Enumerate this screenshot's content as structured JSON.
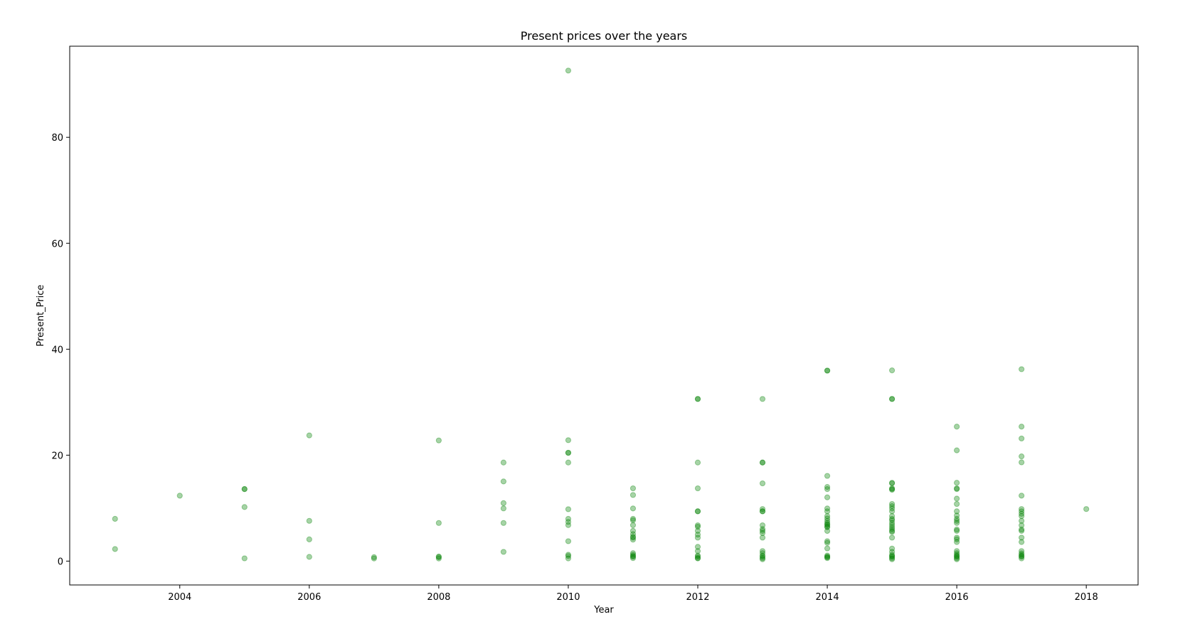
{
  "chart_data": {
    "type": "scatter",
    "title": "Present prices over the years",
    "xlabel": "Year",
    "ylabel": "Present_Price",
    "xlim": [
      2002.3,
      2018.8
    ],
    "ylim": [
      -4.5,
      97.2
    ],
    "x_ticks": [
      2004,
      2006,
      2008,
      2010,
      2012,
      2014,
      2016,
      2018
    ],
    "y_ticks": [
      0,
      20,
      40,
      60,
      80
    ],
    "grid": false,
    "legend": "none",
    "marker_color": "#008000",
    "marker_opacity": 0.35,
    "points": [
      [
        2003,
        7.98
      ],
      [
        2003,
        2.28
      ],
      [
        2004,
        12.35
      ],
      [
        2005,
        13.6
      ],
      [
        2005,
        13.6
      ],
      [
        2005,
        10.21
      ],
      [
        2005,
        0.52
      ],
      [
        2006,
        23.73
      ],
      [
        2006,
        7.6
      ],
      [
        2006,
        4.1
      ],
      [
        2006,
        0.8
      ],
      [
        2007,
        0.75
      ],
      [
        2007,
        0.5
      ],
      [
        2008,
        22.78
      ],
      [
        2008,
        7.2
      ],
      [
        2008,
        0.87
      ],
      [
        2008,
        0.75
      ],
      [
        2008,
        0.5
      ],
      [
        2009,
        18.61
      ],
      [
        2009,
        15.04
      ],
      [
        2009,
        10.95
      ],
      [
        2009,
        9.95
      ],
      [
        2009,
        7.2
      ],
      [
        2009,
        1.75
      ],
      [
        2010,
        92.6
      ],
      [
        2010,
        22.83
      ],
      [
        2010,
        20.45
      ],
      [
        2010,
        20.45
      ],
      [
        2010,
        18.61
      ],
      [
        2010,
        9.8
      ],
      [
        2010,
        7.98
      ],
      [
        2010,
        7.4
      ],
      [
        2010,
        6.8
      ],
      [
        2010,
        3.76
      ],
      [
        2010,
        1.2
      ],
      [
        2010,
        0.95
      ],
      [
        2010,
        0.51
      ],
      [
        2011,
        13.74
      ],
      [
        2011,
        12.48
      ],
      [
        2011,
        9.94
      ],
      [
        2011,
        7.98
      ],
      [
        2011,
        7.7
      ],
      [
        2011,
        6.79
      ],
      [
        2011,
        5.71
      ],
      [
        2011,
        5.09
      ],
      [
        2011,
        4.6
      ],
      [
        2011,
        4.43
      ],
      [
        2011,
        4.06
      ],
      [
        2011,
        1.5
      ],
      [
        2011,
        1.2
      ],
      [
        2011,
        0.95
      ],
      [
        2011,
        0.84
      ],
      [
        2011,
        0.57
      ],
      [
        2012,
        30.61
      ],
      [
        2012,
        30.61
      ],
      [
        2012,
        18.61
      ],
      [
        2012,
        13.74
      ],
      [
        2012,
        9.4
      ],
      [
        2012,
        9.4
      ],
      [
        2012,
        6.76
      ],
      [
        2012,
        6.49
      ],
      [
        2012,
        5.71
      ],
      [
        2012,
        5.0
      ],
      [
        2012,
        4.43
      ],
      [
        2012,
        2.69
      ],
      [
        2012,
        1.9
      ],
      [
        2012,
        1.05
      ],
      [
        2012,
        0.84
      ],
      [
        2012,
        0.57
      ],
      [
        2012,
        0.51
      ],
      [
        2013,
        30.61
      ],
      [
        2013,
        18.61
      ],
      [
        2013,
        18.61
      ],
      [
        2013,
        14.68
      ],
      [
        2013,
        9.83
      ],
      [
        2013,
        9.4
      ],
      [
        2013,
        9.4
      ],
      [
        2013,
        6.76
      ],
      [
        2013,
        6.05
      ],
      [
        2013,
        5.71
      ],
      [
        2013,
        5.3
      ],
      [
        2013,
        4.43
      ],
      [
        2013,
        1.9
      ],
      [
        2013,
        1.5
      ],
      [
        2013,
        1.05
      ],
      [
        2013,
        0.84
      ],
      [
        2013,
        0.57
      ],
      [
        2013,
        0.35
      ],
      [
        2014,
        35.96
      ],
      [
        2014,
        35.96
      ],
      [
        2014,
        16.09
      ],
      [
        2014,
        14.0
      ],
      [
        2014,
        13.6
      ],
      [
        2014,
        12.04
      ],
      [
        2014,
        9.94
      ],
      [
        2014,
        9.4
      ],
      [
        2014,
        8.5
      ],
      [
        2014,
        8.06
      ],
      [
        2014,
        7.6
      ],
      [
        2014,
        7.21
      ],
      [
        2014,
        6.95
      ],
      [
        2014,
        6.79
      ],
      [
        2014,
        6.5
      ],
      [
        2014,
        6.4
      ],
      [
        2014,
        5.7
      ],
      [
        2014,
        3.76
      ],
      [
        2014,
        3.45
      ],
      [
        2014,
        2.4
      ],
      [
        2014,
        1.05
      ],
      [
        2014,
        0.84
      ],
      [
        2014,
        0.74
      ],
      [
        2014,
        0.57
      ],
      [
        2015,
        36.0
      ],
      [
        2015,
        30.61
      ],
      [
        2015,
        30.61
      ],
      [
        2015,
        14.79
      ],
      [
        2015,
        14.68
      ],
      [
        2015,
        13.74
      ],
      [
        2015,
        13.6
      ],
      [
        2015,
        13.46
      ],
      [
        2015,
        10.79
      ],
      [
        2015,
        10.38
      ],
      [
        2015,
        9.94
      ],
      [
        2015,
        9.4
      ],
      [
        2015,
        8.5
      ],
      [
        2015,
        7.98
      ],
      [
        2015,
        7.7
      ],
      [
        2015,
        7.21
      ],
      [
        2015,
        6.8
      ],
      [
        2015,
        6.4
      ],
      [
        2015,
        6.05
      ],
      [
        2015,
        5.71
      ],
      [
        2015,
        5.5
      ],
      [
        2015,
        4.43
      ],
      [
        2015,
        2.37
      ],
      [
        2015,
        1.75
      ],
      [
        2015,
        1.2
      ],
      [
        2015,
        0.95
      ],
      [
        2015,
        0.84
      ],
      [
        2015,
        0.57
      ],
      [
        2015,
        0.35
      ],
      [
        2016,
        25.39
      ],
      [
        2016,
        20.91
      ],
      [
        2016,
        14.79
      ],
      [
        2016,
        13.74
      ],
      [
        2016,
        13.6
      ],
      [
        2016,
        11.8
      ],
      [
        2016,
        10.79
      ],
      [
        2016,
        9.4
      ],
      [
        2016,
        8.61
      ],
      [
        2016,
        7.98
      ],
      [
        2016,
        7.6
      ],
      [
        2016,
        7.21
      ],
      [
        2016,
        5.97
      ],
      [
        2016,
        5.71
      ],
      [
        2016,
        4.43
      ],
      [
        2016,
        4.1
      ],
      [
        2016,
        3.6
      ],
      [
        2016,
        1.9
      ],
      [
        2016,
        1.5
      ],
      [
        2016,
        1.2
      ],
      [
        2016,
        0.95
      ],
      [
        2016,
        0.84
      ],
      [
        2016,
        0.57
      ],
      [
        2016,
        0.35
      ],
      [
        2017,
        36.23
      ],
      [
        2017,
        25.39
      ],
      [
        2017,
        23.15
      ],
      [
        2017,
        19.77
      ],
      [
        2017,
        18.64
      ],
      [
        2017,
        12.35
      ],
      [
        2017,
        9.83
      ],
      [
        2017,
        9.4
      ],
      [
        2017,
        8.93
      ],
      [
        2017,
        8.5
      ],
      [
        2017,
        7.6
      ],
      [
        2017,
        6.76
      ],
      [
        2017,
        5.97
      ],
      [
        2017,
        5.71
      ],
      [
        2017,
        4.43
      ],
      [
        2017,
        3.6
      ],
      [
        2017,
        1.9
      ],
      [
        2017,
        1.47
      ],
      [
        2017,
        1.2
      ],
      [
        2017,
        0.95
      ],
      [
        2017,
        0.84
      ],
      [
        2017,
        0.51
      ],
      [
        2018,
        9.83
      ]
    ]
  }
}
